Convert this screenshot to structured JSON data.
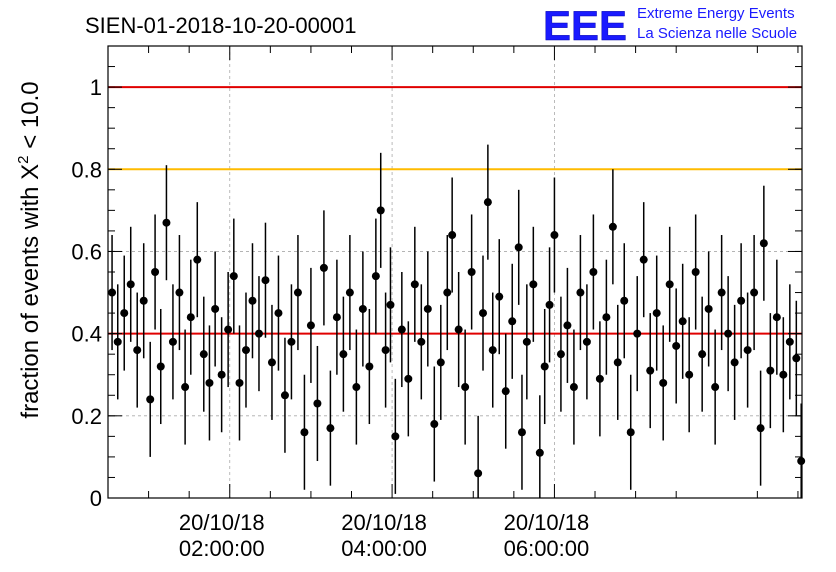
{
  "chart_data": {
    "type": "scatter",
    "title": "SIEN-01-2018-10-20-00001",
    "ylabel_main": "fraction of events with X",
    "ylabel_sup": "2",
    "ylabel_tail": " < 10.0",
    "xlabel": "",
    "ylim": [
      0,
      1.1
    ],
    "xlim_hours": [
      0.5,
      9.05
    ],
    "x_unit": "hours after 2018-10-20 00:00:00",
    "grid": true,
    "y_ticks": [
      {
        "value": 0,
        "label": "0"
      },
      {
        "value": 0.2,
        "label": "0.2"
      },
      {
        "value": 0.4,
        "label": "0.4"
      },
      {
        "value": 0.6,
        "label": "0.6"
      },
      {
        "value": 0.8,
        "label": "0.8"
      },
      {
        "value": 1,
        "label": "1"
      }
    ],
    "x_ticks": [
      {
        "hour": 2,
        "date": "20/10/18",
        "time": "02:00:00"
      },
      {
        "hour": 4,
        "date": "20/10/18",
        "time": "04:00:00"
      },
      {
        "hour": 6,
        "date": "20/10/18",
        "time": "06:00:00"
      }
    ],
    "reference_lines": [
      {
        "value": 1.0,
        "color": "#e00000"
      },
      {
        "value": 0.8,
        "color": "#ffbb00"
      },
      {
        "value": 0.4,
        "color": "#e00000"
      }
    ],
    "series": [
      {
        "marker_color": "#000000",
        "error_approx": 0.1,
        "points": [
          {
            "x": 0.55,
            "y": 0.5
          },
          {
            "x": 0.62,
            "y": 0.38
          },
          {
            "x": 0.7,
            "y": 0.45
          },
          {
            "x": 0.78,
            "y": 0.52
          },
          {
            "x": 0.86,
            "y": 0.36
          },
          {
            "x": 0.94,
            "y": 0.48
          },
          {
            "x": 1.02,
            "y": 0.24
          },
          {
            "x": 1.08,
            "y": 0.55
          },
          {
            "x": 1.15,
            "y": 0.32
          },
          {
            "x": 1.22,
            "y": 0.67
          },
          {
            "x": 1.3,
            "y": 0.38
          },
          {
            "x": 1.38,
            "y": 0.5
          },
          {
            "x": 1.45,
            "y": 0.27
          },
          {
            "x": 1.52,
            "y": 0.44
          },
          {
            "x": 1.6,
            "y": 0.58
          },
          {
            "x": 1.68,
            "y": 0.35
          },
          {
            "x": 1.75,
            "y": 0.28
          },
          {
            "x": 1.82,
            "y": 0.46
          },
          {
            "x": 1.9,
            "y": 0.3
          },
          {
            "x": 1.98,
            "y": 0.41
          },
          {
            "x": 2.05,
            "y": 0.54
          },
          {
            "x": 2.12,
            "y": 0.28
          },
          {
            "x": 2.2,
            "y": 0.36
          },
          {
            "x": 2.28,
            "y": 0.48
          },
          {
            "x": 2.36,
            "y": 0.4
          },
          {
            "x": 2.44,
            "y": 0.53
          },
          {
            "x": 2.52,
            "y": 0.33
          },
          {
            "x": 2.6,
            "y": 0.45
          },
          {
            "x": 2.68,
            "y": 0.25
          },
          {
            "x": 2.76,
            "y": 0.38
          },
          {
            "x": 2.84,
            "y": 0.5
          },
          {
            "x": 2.92,
            "y": 0.16
          },
          {
            "x": 3.0,
            "y": 0.42
          },
          {
            "x": 3.08,
            "y": 0.23
          },
          {
            "x": 3.16,
            "y": 0.56
          },
          {
            "x": 3.24,
            "y": 0.17
          },
          {
            "x": 3.32,
            "y": 0.44
          },
          {
            "x": 3.4,
            "y": 0.35
          },
          {
            "x": 3.48,
            "y": 0.5
          },
          {
            "x": 3.56,
            "y": 0.27
          },
          {
            "x": 3.64,
            "y": 0.46
          },
          {
            "x": 3.72,
            "y": 0.32
          },
          {
            "x": 3.8,
            "y": 0.54
          },
          {
            "x": 3.86,
            "y": 0.7
          },
          {
            "x": 3.92,
            "y": 0.36
          },
          {
            "x": 3.98,
            "y": 0.47
          },
          {
            "x": 4.04,
            "y": 0.15
          },
          {
            "x": 4.12,
            "y": 0.41
          },
          {
            "x": 4.2,
            "y": 0.29
          },
          {
            "x": 4.28,
            "y": 0.52
          },
          {
            "x": 4.36,
            "y": 0.38
          },
          {
            "x": 4.44,
            "y": 0.46
          },
          {
            "x": 4.52,
            "y": 0.18
          },
          {
            "x": 4.6,
            "y": 0.33
          },
          {
            "x": 4.68,
            "y": 0.5
          },
          {
            "x": 4.74,
            "y": 0.64
          },
          {
            "x": 4.82,
            "y": 0.41
          },
          {
            "x": 4.9,
            "y": 0.27
          },
          {
            "x": 4.98,
            "y": 0.55
          },
          {
            "x": 5.06,
            "y": 0.06
          },
          {
            "x": 5.12,
            "y": 0.45
          },
          {
            "x": 5.18,
            "y": 0.72
          },
          {
            "x": 5.24,
            "y": 0.36
          },
          {
            "x": 5.32,
            "y": 0.49
          },
          {
            "x": 5.4,
            "y": 0.26
          },
          {
            "x": 5.48,
            "y": 0.43
          },
          {
            "x": 5.56,
            "y": 0.61
          },
          {
            "x": 5.6,
            "y": 0.16
          },
          {
            "x": 5.66,
            "y": 0.38
          },
          {
            "x": 5.74,
            "y": 0.52
          },
          {
            "x": 5.82,
            "y": 0.11
          },
          {
            "x": 5.88,
            "y": 0.32
          },
          {
            "x": 5.94,
            "y": 0.47
          },
          {
            "x": 6.0,
            "y": 0.64
          },
          {
            "x": 6.08,
            "y": 0.35
          },
          {
            "x": 6.16,
            "y": 0.42
          },
          {
            "x": 6.24,
            "y": 0.27
          },
          {
            "x": 6.32,
            "y": 0.5
          },
          {
            "x": 6.4,
            "y": 0.38
          },
          {
            "x": 6.48,
            "y": 0.55
          },
          {
            "x": 6.56,
            "y": 0.29
          },
          {
            "x": 6.64,
            "y": 0.44
          },
          {
            "x": 6.72,
            "y": 0.66
          },
          {
            "x": 6.78,
            "y": 0.33
          },
          {
            "x": 6.86,
            "y": 0.48
          },
          {
            "x": 6.94,
            "y": 0.16
          },
          {
            "x": 7.02,
            "y": 0.4
          },
          {
            "x": 7.1,
            "y": 0.58
          },
          {
            "x": 7.18,
            "y": 0.31
          },
          {
            "x": 7.26,
            "y": 0.45
          },
          {
            "x": 7.34,
            "y": 0.28
          },
          {
            "x": 7.42,
            "y": 0.52
          },
          {
            "x": 7.5,
            "y": 0.37
          },
          {
            "x": 7.58,
            "y": 0.43
          },
          {
            "x": 7.66,
            "y": 0.3
          },
          {
            "x": 7.74,
            "y": 0.55
          },
          {
            "x": 7.82,
            "y": 0.35
          },
          {
            "x": 7.9,
            "y": 0.46
          },
          {
            "x": 7.98,
            "y": 0.27
          },
          {
            "x": 8.06,
            "y": 0.5
          },
          {
            "x": 8.14,
            "y": 0.4
          },
          {
            "x": 8.22,
            "y": 0.33
          },
          {
            "x": 8.3,
            "y": 0.48
          },
          {
            "x": 8.38,
            "y": 0.36
          },
          {
            "x": 8.46,
            "y": 0.5
          },
          {
            "x": 8.54,
            "y": 0.17
          },
          {
            "x": 8.58,
            "y": 0.62
          },
          {
            "x": 8.66,
            "y": 0.31
          },
          {
            "x": 8.74,
            "y": 0.44
          },
          {
            "x": 8.82,
            "y": 0.3
          },
          {
            "x": 8.9,
            "y": 0.38
          },
          {
            "x": 8.98,
            "y": 0.34
          },
          {
            "x": 9.04,
            "y": 0.09
          }
        ]
      }
    ]
  },
  "logo": {
    "mark": "EEE",
    "line1": "Extreme Energy Events",
    "line2": "La Scienza nelle Scuole",
    "color": "#1a1aff"
  }
}
